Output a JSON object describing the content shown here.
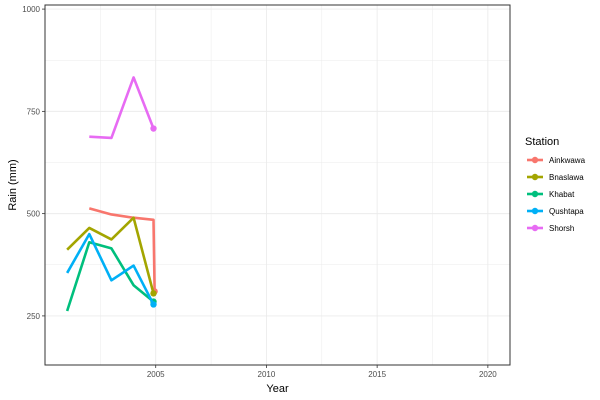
{
  "chart_data": {
    "type": "line",
    "xlabel": "Year",
    "ylabel": "Rain (mm)",
    "xlim": [
      2000,
      2021
    ],
    "ylim": [
      130,
      1010
    ],
    "x_ticks": [
      2005,
      2010,
      2015,
      2020
    ],
    "y_ticks": [
      250,
      500,
      750,
      1000
    ],
    "grid": true,
    "legend": {
      "title": "Station",
      "position": "right"
    },
    "series": [
      {
        "name": "Ainkwawa",
        "color": "#F8766D",
        "x": [
          2002,
          2003,
          2004,
          2004.9,
          2004.95
        ],
        "y": [
          513,
          498,
          490,
          485,
          310
        ]
      },
      {
        "name": "Bnaslawa",
        "color": "#A3A500",
        "x": [
          2001,
          2002,
          2003,
          2004,
          2004.9
        ],
        "y": [
          412,
          465,
          437,
          490,
          305
        ]
      },
      {
        "name": "Khabat",
        "color": "#00BF7D",
        "x": [
          2001,
          2002,
          2003,
          2004,
          2004.9
        ],
        "y": [
          262,
          430,
          415,
          325,
          285
        ]
      },
      {
        "name": "Qushtapa",
        "color": "#00B0F6",
        "x": [
          2001,
          2002,
          2003,
          2004,
          2004.9
        ],
        "y": [
          355,
          450,
          337,
          373,
          278
        ]
      },
      {
        "name": "Shorsh",
        "color": "#E76BF3",
        "x": [
          2002,
          2003,
          2004,
          2004.9
        ],
        "y": [
          688,
          685,
          833,
          708
        ]
      }
    ]
  }
}
